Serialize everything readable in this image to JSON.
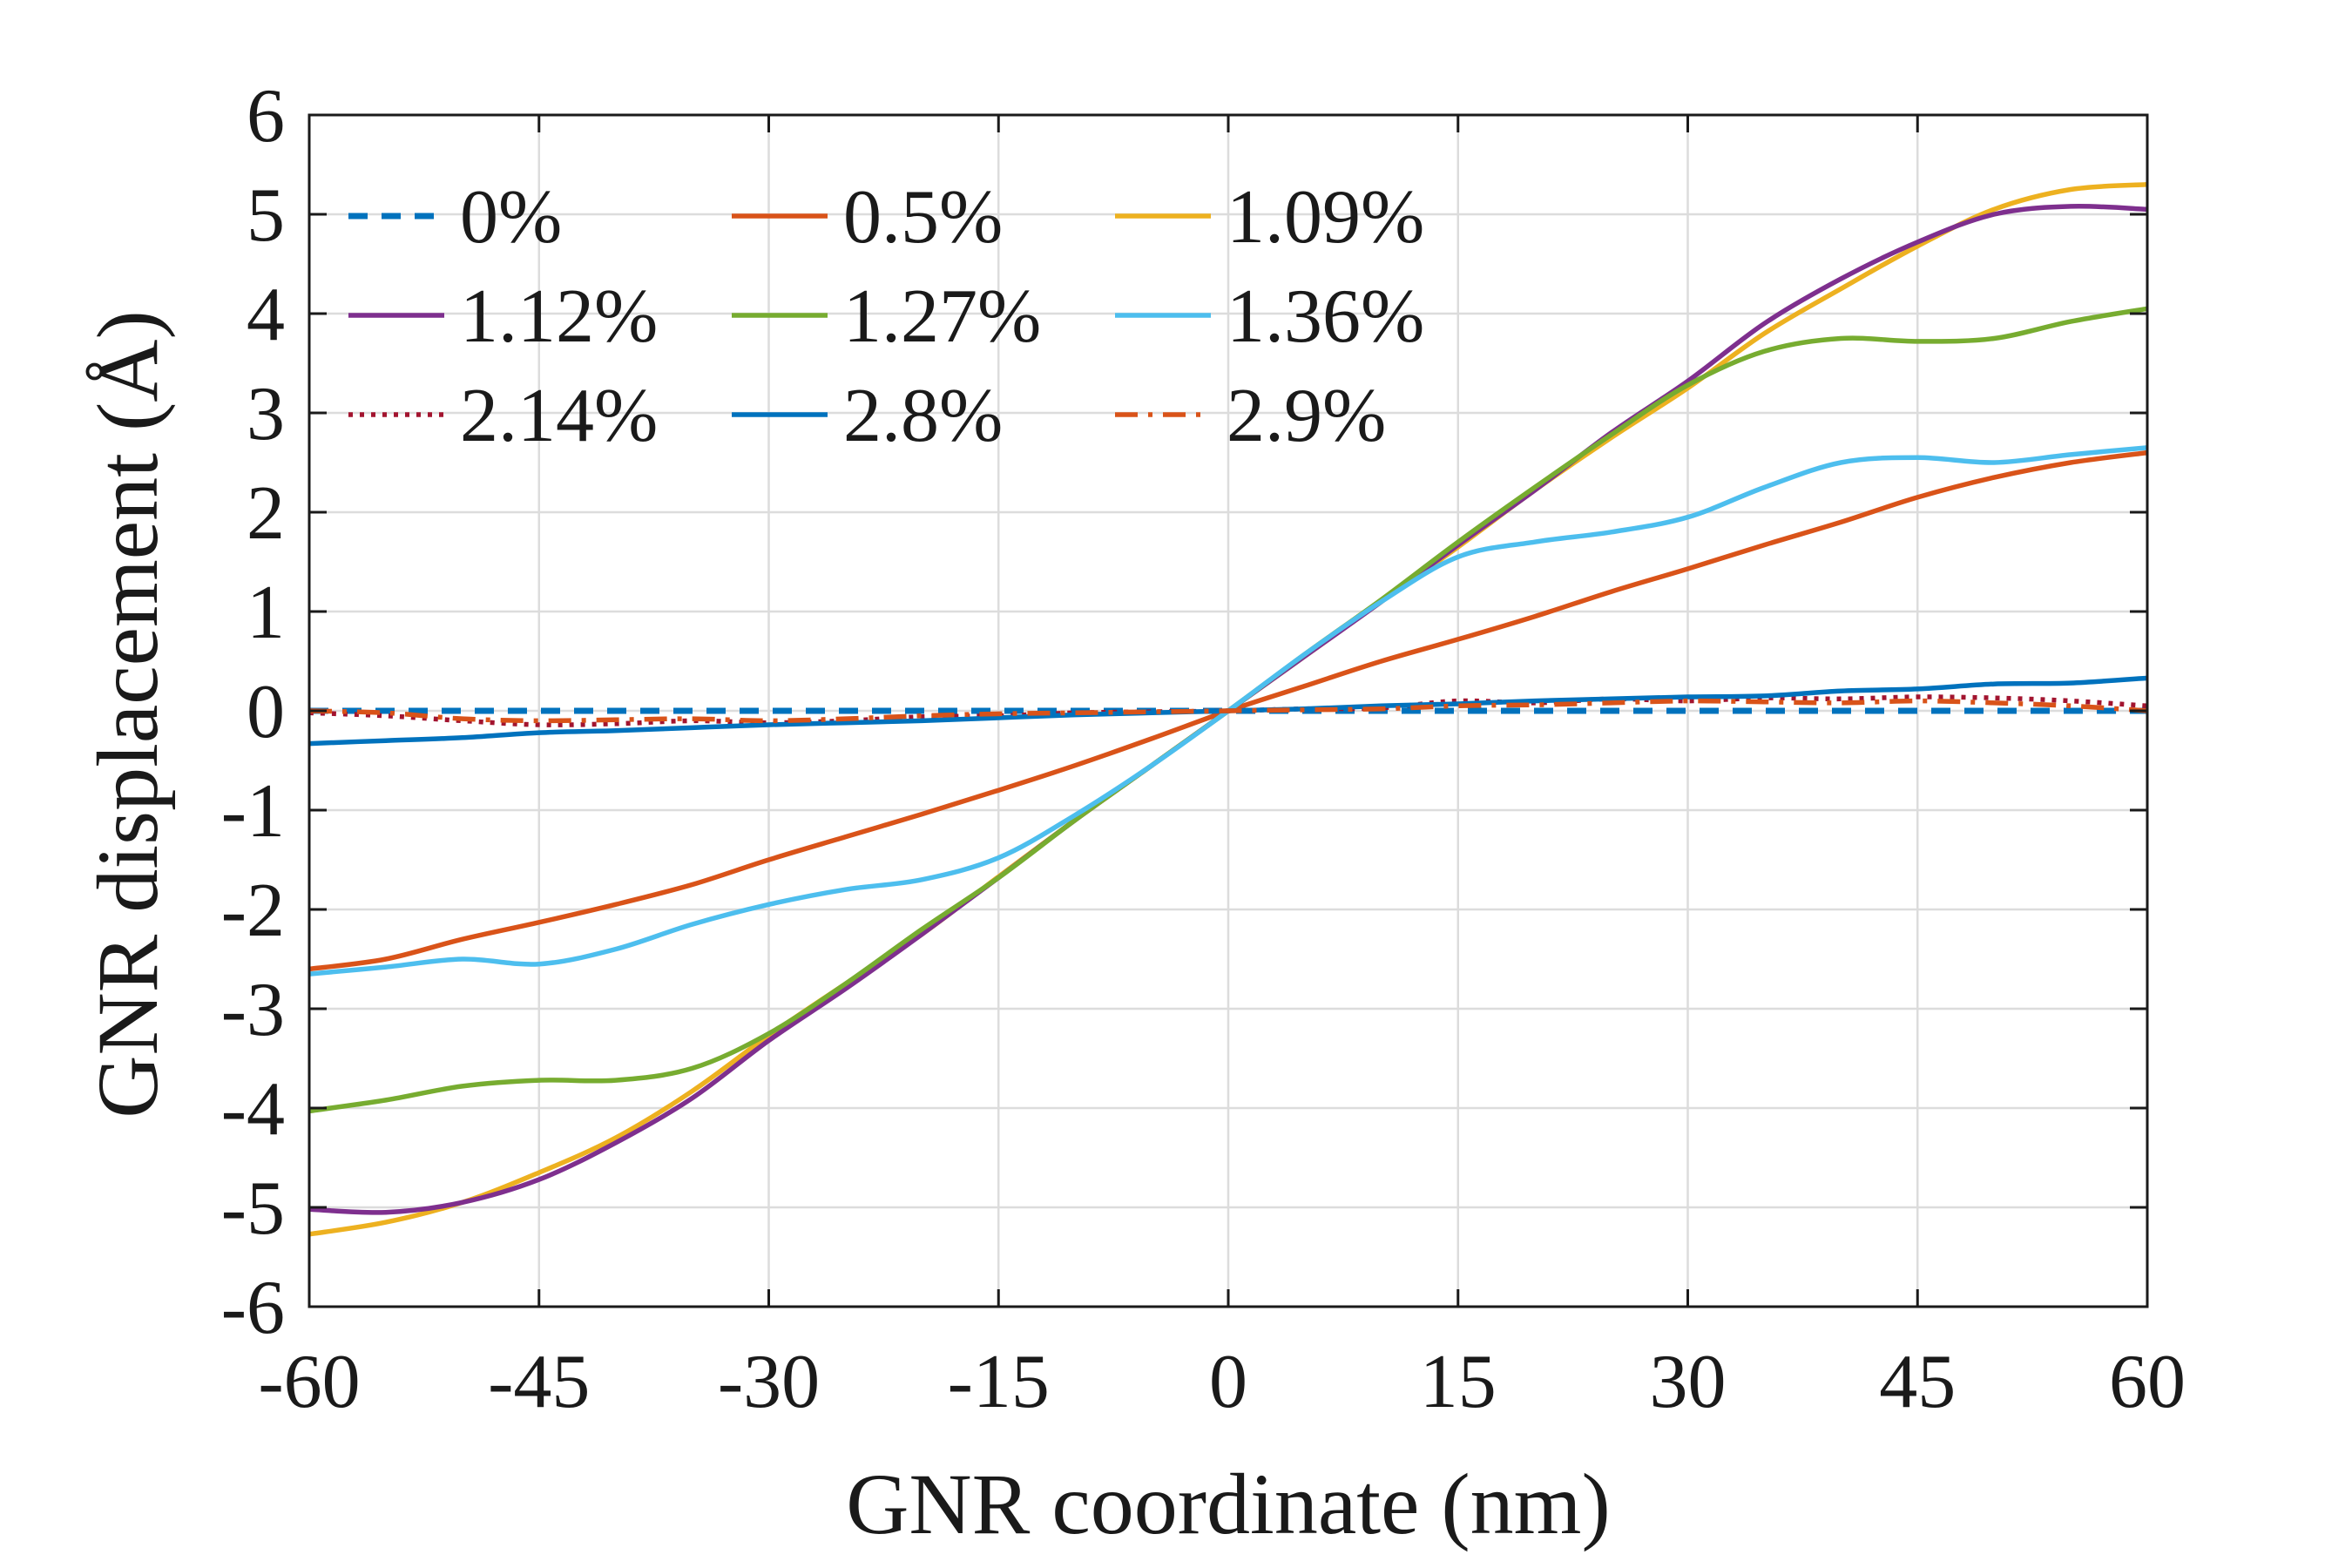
{
  "chart_data": {
    "type": "line",
    "title": "",
    "xlabel": "GNR coordinate (nm)",
    "ylabel": "GNR displacement (Å)",
    "xlim": [
      -60,
      60
    ],
    "ylim": [
      -6,
      6
    ],
    "xticks": [
      -60,
      -45,
      -30,
      -15,
      0,
      15,
      30,
      45,
      60
    ],
    "xtick_labels": [
      "-60",
      "-45",
      "-30",
      "-15",
      "0",
      "15",
      "30",
      "45",
      "60"
    ],
    "yticks": [
      -6,
      -5,
      -4,
      -3,
      -2,
      -1,
      0,
      1,
      2,
      3,
      4,
      5,
      6
    ],
    "ytick_labels": [
      "-6",
      "-5",
      "-4",
      "-3",
      "-2",
      "-1",
      "0",
      "1",
      "2",
      "3",
      "4",
      "5",
      "6"
    ],
    "grid": true,
    "legend_position": "top-left",
    "legend_columns": 3,
    "x": [
      -60,
      -55,
      -50,
      -45,
      -40,
      -35,
      -30,
      -25,
      -20,
      -15,
      -10,
      -5,
      0,
      5,
      10,
      15,
      20,
      25,
      30,
      35,
      40,
      45,
      50,
      55,
      60
    ],
    "series": [
      {
        "name": "0%",
        "color": "#0072BD",
        "dash": "dashed",
        "values": [
          0.0,
          0.0,
          0.0,
          0.0,
          0.0,
          0.0,
          0.0,
          0.0,
          0.0,
          0.0,
          0.0,
          0.0,
          0.0,
          0.0,
          0.0,
          0.0,
          0.0,
          0.0,
          0.0,
          0.0,
          0.0,
          0.0,
          0.0,
          0.0,
          0.0
        ]
      },
      {
        "name": "0.5%",
        "color": "#D95319",
        "dash": "solid",
        "values": [
          -2.6,
          -2.5,
          -2.3,
          -2.13,
          -1.95,
          -1.75,
          -1.5,
          -1.27,
          -1.04,
          -0.8,
          -0.55,
          -0.28,
          0.0,
          0.25,
          0.5,
          0.72,
          0.95,
          1.2,
          1.43,
          1.67,
          1.9,
          2.15,
          2.35,
          2.5,
          2.6
        ]
      },
      {
        "name": "1.09%",
        "color": "#EDB120",
        "dash": "solid",
        "values": [
          -5.27,
          -5.15,
          -4.95,
          -4.65,
          -4.3,
          -3.83,
          -3.27,
          -2.75,
          -2.25,
          -1.67,
          -1.1,
          -0.55,
          0.0,
          0.55,
          1.1,
          1.65,
          2.22,
          2.75,
          3.25,
          3.8,
          4.25,
          4.68,
          5.05,
          5.25,
          5.3
        ]
      },
      {
        "name": "1.12%",
        "color": "#7E2F8E",
        "dash": "solid",
        "values": [
          -5.02,
          -5.05,
          -4.95,
          -4.72,
          -4.35,
          -3.9,
          -3.32,
          -2.8,
          -2.25,
          -1.68,
          -1.1,
          -0.55,
          0.0,
          0.55,
          1.1,
          1.67,
          2.22,
          2.8,
          3.32,
          3.9,
          4.35,
          4.72,
          5.0,
          5.08,
          5.05
        ]
      },
      {
        "name": "1.27%",
        "color": "#77AC30",
        "dash": "solid",
        "values": [
          -4.03,
          -3.92,
          -3.78,
          -3.72,
          -3.72,
          -3.6,
          -3.25,
          -2.75,
          -2.2,
          -1.68,
          -1.1,
          -0.55,
          0.0,
          0.57,
          1.12,
          1.7,
          2.25,
          2.78,
          3.28,
          3.62,
          3.75,
          3.72,
          3.75,
          3.92,
          4.05
        ]
      },
      {
        "name": "1.36%",
        "color": "#4DBEEE",
        "dash": "solid",
        "values": [
          -2.65,
          -2.58,
          -2.5,
          -2.55,
          -2.4,
          -2.15,
          -1.95,
          -1.8,
          -1.7,
          -1.48,
          -1.05,
          -0.55,
          0.0,
          0.57,
          1.1,
          1.55,
          1.7,
          1.8,
          1.95,
          2.25,
          2.5,
          2.55,
          2.5,
          2.58,
          2.65
        ]
      },
      {
        "name": "2.14%",
        "color": "#A2142F",
        "dash": "dotted",
        "values": [
          -0.02,
          -0.05,
          -0.1,
          -0.14,
          -0.13,
          -0.1,
          -0.12,
          -0.1,
          -0.06,
          -0.05,
          -0.02,
          -0.01,
          0.0,
          0.02,
          0.03,
          0.1,
          0.08,
          0.12,
          0.1,
          0.13,
          0.12,
          0.14,
          0.13,
          0.1,
          0.05
        ]
      },
      {
        "name": "2.8%",
        "color": "#0072BD",
        "dash": "solid",
        "values": [
          -0.33,
          -0.3,
          -0.27,
          -0.22,
          -0.2,
          -0.17,
          -0.14,
          -0.12,
          -0.1,
          -0.07,
          -0.04,
          -0.02,
          0.0,
          0.02,
          0.05,
          0.07,
          0.1,
          0.12,
          0.14,
          0.15,
          0.2,
          0.22,
          0.27,
          0.28,
          0.33
        ]
      },
      {
        "name": "2.9%",
        "color": "#D95319",
        "dash": "dashdot",
        "values": [
          0.0,
          -0.02,
          -0.08,
          -0.1,
          -0.09,
          -0.08,
          -0.1,
          -0.08,
          -0.05,
          -0.03,
          -0.02,
          -0.01,
          0.0,
          0.01,
          0.02,
          0.05,
          0.06,
          0.08,
          0.1,
          0.09,
          0.08,
          0.1,
          0.08,
          0.05,
          0.0
        ]
      }
    ]
  }
}
